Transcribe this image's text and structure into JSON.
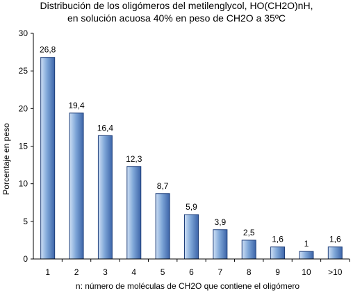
{
  "chart_data": {
    "type": "bar",
    "title_lines": [
      "Distribución de los oligómeros del metilenglycol, HO(CH2O)nH,",
      "en solución acuosa 40% en peso de CH2O a 35ºC"
    ],
    "xlabel": "n: número de moléculas de CH2O que contiene el oligómero",
    "ylabel": "Porcentaje en peso",
    "categories": [
      "1",
      "2",
      "3",
      "4",
      "5",
      "6",
      "7",
      "8",
      "9",
      "10",
      ">10"
    ],
    "values": [
      26.8,
      19.4,
      16.4,
      12.3,
      8.7,
      5.9,
      3.9,
      2.5,
      1.6,
      1,
      1.6
    ],
    "data_labels": [
      "26,8",
      "19,4",
      "16,4",
      "12,3",
      "8,7",
      "5,9",
      "3,9",
      "2,5",
      "1,6",
      "1",
      "1,6"
    ],
    "ylim": [
      0,
      30
    ],
    "yticks": [
      "0",
      "5",
      "10",
      "15",
      "20",
      "25",
      "30"
    ],
    "grid": false,
    "legend": "none",
    "colors": {
      "bar_light": "#cfe0f5",
      "bar_mid": "#7fa7d8",
      "bar_dark": "#3c64a8",
      "bar_edge": "#1f3f7a",
      "axis": "#000000"
    }
  }
}
